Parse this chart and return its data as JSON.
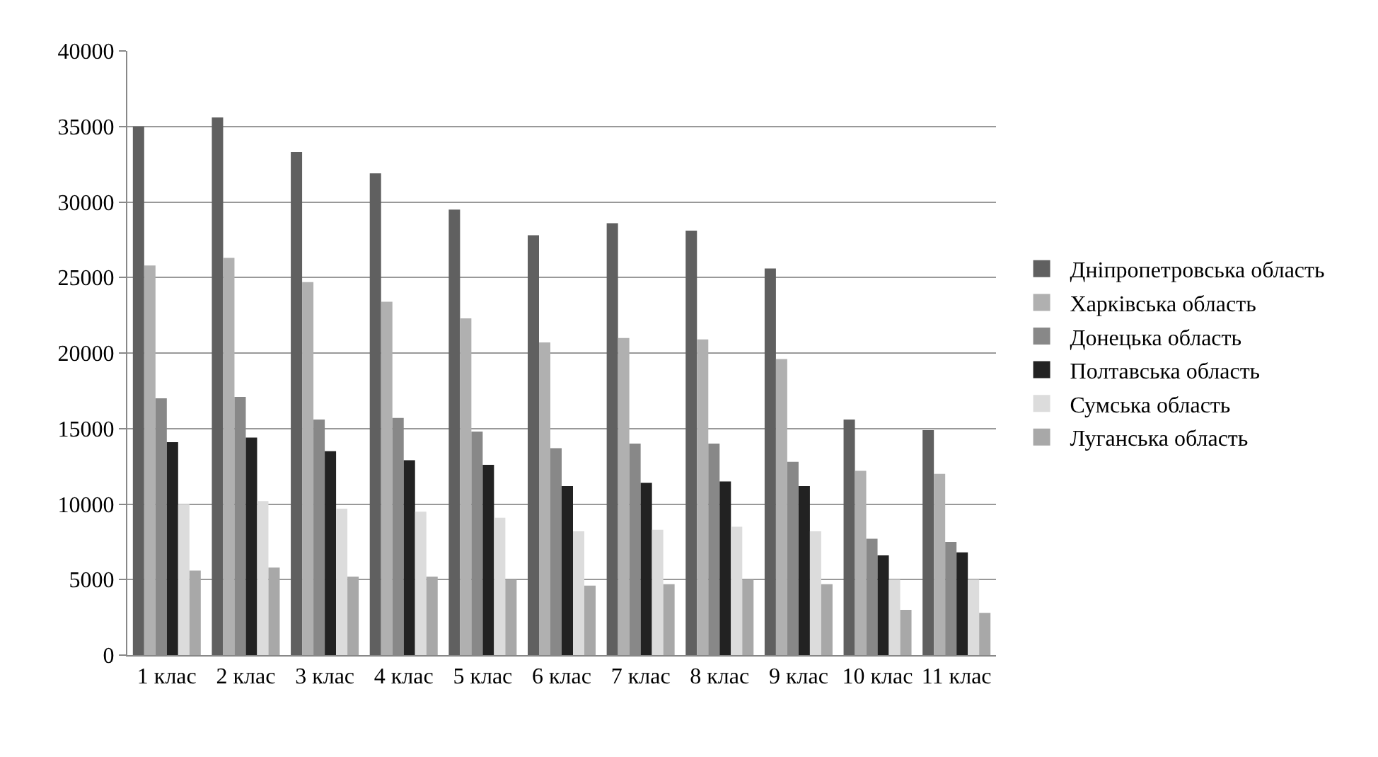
{
  "chart_data": {
    "type": "bar",
    "categories": [
      "1 клас",
      "2 клас",
      "3 клас",
      "4 клас",
      "5 клас",
      "6 клас",
      "7 клас",
      "8 клас",
      "9 клас",
      "10 клас",
      "11 клас"
    ],
    "series": [
      {
        "name": "Дніпропетровська область",
        "color": "#606060",
        "values": [
          35000,
          35600,
          33300,
          31900,
          29500,
          27800,
          28600,
          28100,
          25600,
          15600,
          14900
        ]
      },
      {
        "name": "Харківська область",
        "color": "#b0b0b0",
        "values": [
          25800,
          26300,
          24700,
          23400,
          22300,
          20700,
          21000,
          20900,
          19600,
          12200,
          12000
        ]
      },
      {
        "name": "Донецька область",
        "color": "#888888",
        "values": [
          17000,
          17100,
          15600,
          15700,
          14800,
          13700,
          14000,
          14000,
          12800,
          7700,
          7500
        ]
      },
      {
        "name": "Полтавська область",
        "color": "#222222",
        "values": [
          14100,
          14400,
          13500,
          12900,
          12600,
          11200,
          11400,
          11500,
          11200,
          6600,
          6800
        ]
      },
      {
        "name": "Сумська область",
        "color": "#dcdcdc",
        "values": [
          10000,
          10200,
          9700,
          9500,
          9100,
          8200,
          8300,
          8500,
          8200,
          5000,
          5000
        ]
      },
      {
        "name": "Луганська область",
        "color": "#a8a8a8",
        "values": [
          5600,
          5800,
          5200,
          5200,
          5000,
          4600,
          4700,
          5000,
          4700,
          3000,
          2800
        ]
      }
    ],
    "ylim": [
      0,
      40000
    ],
    "yticks": [
      0,
      5000,
      10000,
      15000,
      20000,
      25000,
      30000,
      35000,
      40000
    ],
    "grid": "y",
    "legend": "right"
  }
}
